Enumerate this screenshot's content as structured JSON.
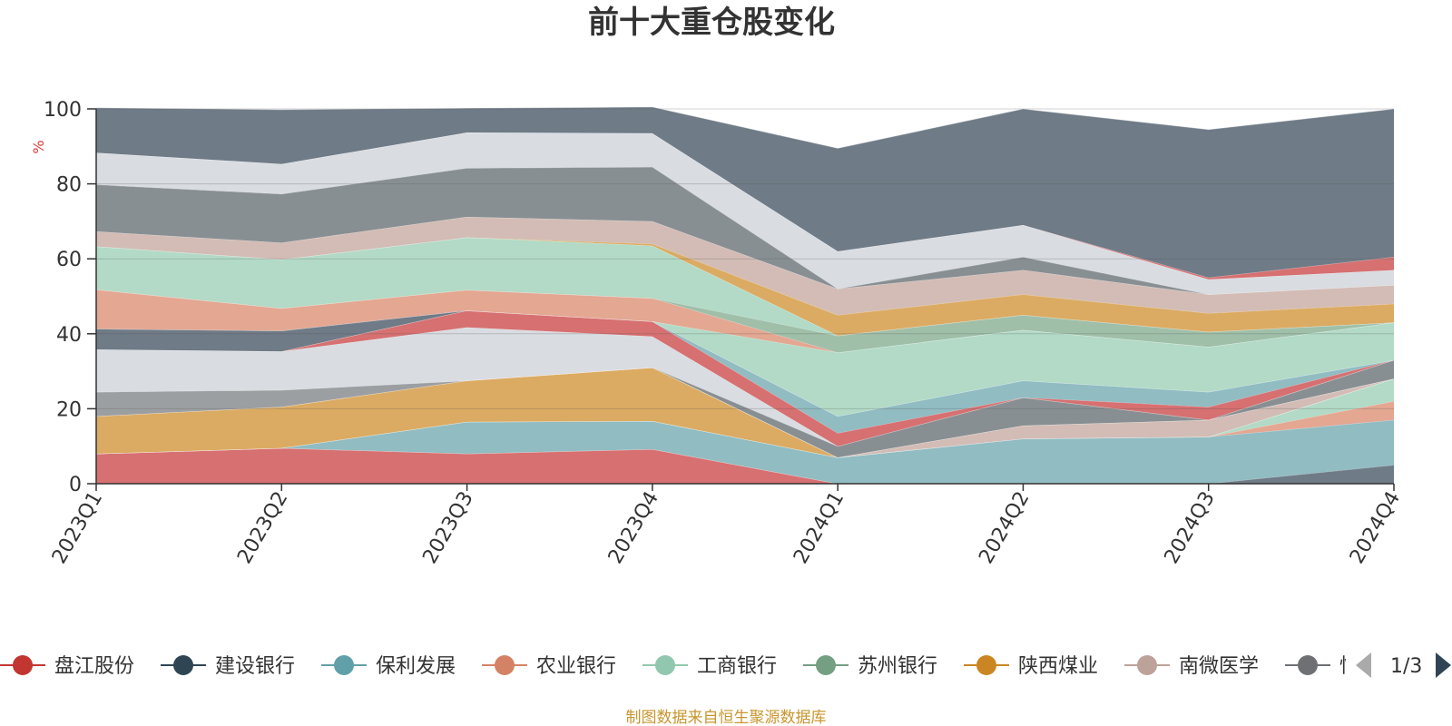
{
  "chart_data": {
    "type": "area",
    "stacked": true,
    "title": "前十大重仓股变化",
    "ylabel": "%",
    "ylim": [
      0,
      100
    ],
    "yticks": [
      0,
      20,
      40,
      60,
      80,
      100
    ],
    "categories": [
      "2023Q1",
      "2023Q2",
      "2023Q3",
      "2023Q4",
      "2024Q1",
      "2024Q2",
      "2024Q3",
      "2024Q4"
    ],
    "grid": true,
    "legend_position": "bottom",
    "legend": {
      "page": "1/3",
      "items": [
        {
          "name": "盘江股份",
          "color": "#c23531"
        },
        {
          "name": "建设银行",
          "color": "#2f4554"
        },
        {
          "name": "保利发展",
          "color": "#61a0a8"
        },
        {
          "name": "农业银行",
          "color": "#d48265"
        },
        {
          "name": "工商银行",
          "color": "#91c7ae"
        },
        {
          "name": "苏州银行",
          "color": "#749f83"
        },
        {
          "name": "陕西煤业",
          "color": "#ca8622"
        },
        {
          "name": "南微医学",
          "color": "#bda29a"
        },
        {
          "name": "恒",
          "color": "#6e7074"
        }
      ]
    },
    "series": [
      {
        "name": "盘江股份",
        "color": "#d67071",
        "values": [
          8,
          9.5,
          8,
          9.2,
          0,
          0,
          0,
          0
        ]
      },
      {
        "name": "",
        "color": "#6f7b87",
        "values": [
          0,
          0,
          0,
          0,
          0,
          0,
          0,
          5
        ]
      },
      {
        "name": "保利发展",
        "color": "#90bcc2",
        "values": [
          0,
          0,
          8.5,
          7.5,
          7,
          12,
          12.5,
          12
        ]
      },
      {
        "name": "",
        "color": "#e3a792",
        "values": [
          0,
          0,
          0,
          0,
          0,
          0,
          0,
          5
        ]
      },
      {
        "name": "",
        "color": "#b2dac6",
        "values": [
          0,
          0,
          0,
          0,
          0,
          0,
          0,
          6
        ]
      },
      {
        "name": "陕西煤业",
        "color": "#dbab63",
        "values": [
          10,
          11,
          11,
          14.3,
          0,
          0,
          0,
          0
        ]
      },
      {
        "name": "南微医学",
        "color": "#d2bcb5",
        "values": [
          0,
          0,
          0,
          0,
          0,
          3.5,
          4.5,
          0
        ]
      },
      {
        "name": "",
        "color": "#9c9fa2",
        "values": [
          6.5,
          4.5,
          0,
          0,
          0,
          0,
          0,
          0
        ]
      },
      {
        "name": "",
        "color": "#888f93",
        "values": [
          0,
          0,
          0,
          0,
          3,
          7.5,
          0,
          5
        ]
      },
      {
        "name": "",
        "color": "#d9dce1",
        "values": [
          11.3,
          10.3,
          14.2,
          8.3,
          0,
          0,
          0,
          0
        ]
      },
      {
        "name": "",
        "color": "#d67071",
        "values": [
          0,
          0,
          4.5,
          4,
          3.5,
          0,
          3.5,
          0
        ]
      },
      {
        "name": "",
        "color": "#90bcc2",
        "values": [
          0,
          0,
          0,
          0,
          4.5,
          4.5,
          4,
          0
        ]
      },
      {
        "name": "",
        "color": "#6f7b87",
        "values": [
          5.5,
          5.5,
          0,
          0,
          0,
          0,
          0,
          0
        ]
      },
      {
        "name": "",
        "color": "#b2dac6",
        "values": [
          0,
          0,
          0,
          0,
          17,
          13.5,
          12,
          10
        ]
      },
      {
        "name": "",
        "color": "#e3a792",
        "values": [
          10.5,
          6,
          5.5,
          6.2,
          0,
          0,
          0,
          0
        ]
      },
      {
        "name": "",
        "color": "#9fbfa9",
        "values": [
          0,
          0,
          0,
          0,
          4.5,
          4,
          4,
          0
        ]
      },
      {
        "name": "工商银行",
        "color": "#b2dac6",
        "values": [
          11.5,
          13,
          14,
          14,
          0,
          0,
          0,
          0
        ]
      },
      {
        "name": "",
        "color": "#dbab63",
        "values": [
          0,
          0,
          0,
          0.5,
          5.5,
          5.5,
          5,
          5
        ]
      },
      {
        "name": "",
        "color": "#d2bcb5",
        "values": [
          4,
          4.5,
          5.5,
          6,
          7,
          6.5,
          5,
          5
        ]
      },
      {
        "name": "",
        "color": "#888f93",
        "values": [
          12.5,
          13,
          13,
          14.5,
          0,
          3.5,
          0,
          0
        ]
      },
      {
        "name": "",
        "color": "#d9dce1",
        "values": [
          8.5,
          8,
          9.5,
          9,
          10,
          8.5,
          4,
          4
        ]
      },
      {
        "name": "",
        "color": "#d67071",
        "values": [
          0,
          0,
          0,
          0,
          0,
          0,
          0.5,
          3.5
        ]
      },
      {
        "name": "",
        "color": "#6f7b87",
        "values": [
          12,
          14.5,
          6.5,
          7,
          27.5,
          31,
          39.5,
          39.5
        ]
      }
    ]
  },
  "footer": {
    "source": "制图数据来自恒生聚源数据库"
  }
}
